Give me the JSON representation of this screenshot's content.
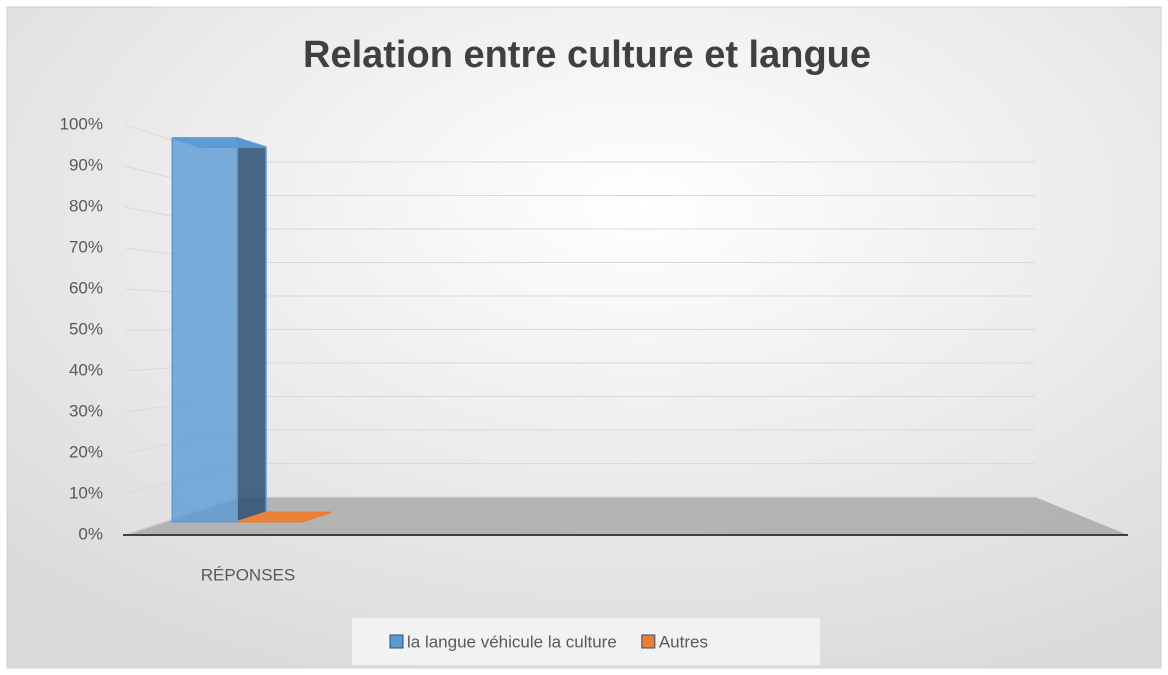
{
  "chart_data": {
    "type": "bar3d",
    "title": "Relation entre culture et langue",
    "categories": [
      "RÉPONSES"
    ],
    "series": [
      {
        "name": "la langue véhicule la culture",
        "color": "#5b9bd5",
        "values": [
          100
        ]
      },
      {
        "name": "Autres",
        "color": "#ed7d31",
        "values": [
          0
        ]
      }
    ],
    "ylim": [
      0,
      100
    ],
    "yticks": [
      {
        "value": 0,
        "label": "0%"
      },
      {
        "value": 10,
        "label": "10%"
      },
      {
        "value": 20,
        "label": "20%"
      },
      {
        "value": 30,
        "label": "30%"
      },
      {
        "value": 40,
        "label": "40%"
      },
      {
        "value": 50,
        "label": "50%"
      },
      {
        "value": 60,
        "label": "60%"
      },
      {
        "value": 70,
        "label": "70%"
      },
      {
        "value": 80,
        "label": "80%"
      },
      {
        "value": 90,
        "label": "90%"
      },
      {
        "value": 100,
        "label": "100%"
      }
    ],
    "grid": true,
    "legend": "bottom"
  }
}
